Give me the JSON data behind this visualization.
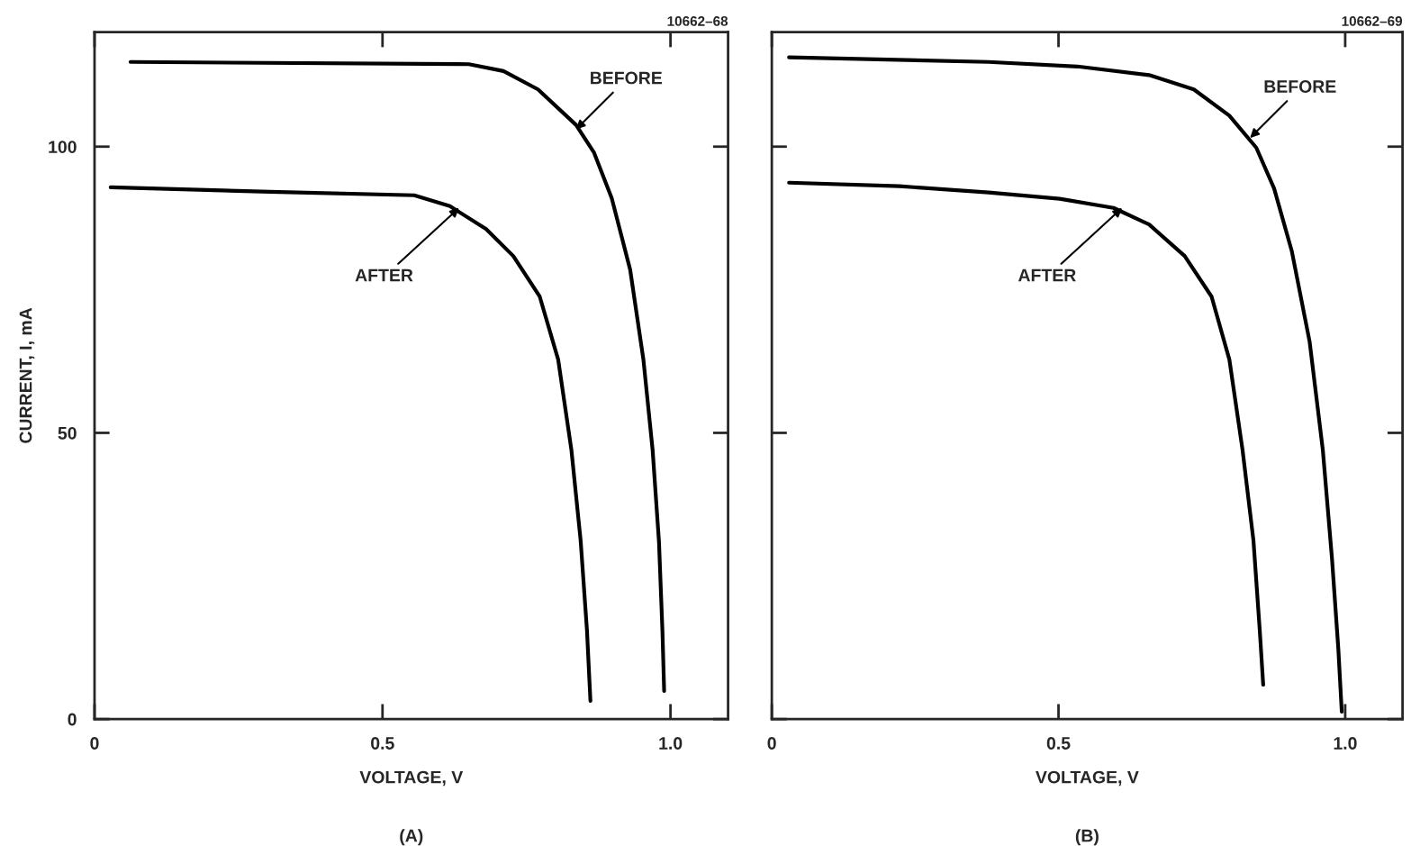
{
  "chart_data": [
    {
      "type": "line",
      "xlabel": "VOLTAGE, V",
      "ylabel": "CURRENT, I, mA",
      "xlim": [
        0,
        1.1
      ],
      "ylim": [
        0,
        120
      ],
      "xticks": [
        0,
        0.5,
        {
          "value": 1.0,
          "label": "1.0"
        }
      ],
      "yticks": [
        0,
        50,
        100
      ],
      "grid": false,
      "legend": false,
      "tick_labels": true,
      "series": [
        {
          "color": "#000000",
          "x": [
            0.0625,
            0.65,
            0.71,
            0.77,
            0.836,
            0.867,
            0.898,
            0.93,
            0.953,
            0.969,
            0.98,
            0.986,
            0.989
          ],
          "values": [
            114.8,
            114.4,
            113.2,
            110,
            103.8,
            99,
            91,
            78.5,
            62.8,
            47,
            31,
            15.5,
            4.9
          ]
        },
        {
          "color": "#000000",
          "x": [
            0.028,
            0.305,
            0.555,
            0.617,
            0.68,
            0.727,
            0.773,
            0.805,
            0.828,
            0.844,
            0.855,
            0.861
          ],
          "values": [
            92.9,
            92.1,
            91.5,
            89.6,
            85.6,
            80.9,
            73.8,
            62.8,
            47,
            31.2,
            15.5,
            3.2
          ]
        }
      ],
      "annotations": [
        {
          "text": "BEFORE",
          "x": 0.836,
          "y": 103
        },
        {
          "text": "AFTER",
          "x": 0.633,
          "y": 89.3
        },
        "10662–68",
        "(A)"
      ]
    },
    {
      "type": "line",
      "xlabel": "VOLTAGE, V",
      "xlim": [
        0,
        1.1
      ],
      "ylim": [
        0,
        120
      ],
      "xticks": [
        0,
        0.5,
        {
          "value": 1.0,
          "label": "1.0"
        }
      ],
      "yticks": [
        0,
        50,
        100
      ],
      "grid": false,
      "legend": false,
      "tick_labels": "x",
      "series": [
        {
          "color": "#000000",
          "x": [
            0.03,
            0.378,
            0.533,
            0.658,
            0.736,
            0.798,
            0.845,
            0.876,
            0.907,
            0.938,
            0.961,
            0.977,
            0.988,
            0.994
          ],
          "values": [
            115.6,
            114.8,
            114,
            112.5,
            110,
            105.4,
            99.8,
            92.7,
            81.7,
            65.9,
            47,
            28,
            12.3,
            1.3
          ]
        },
        {
          "color": "#000000",
          "x": [
            0.03,
            0.222,
            0.378,
            0.502,
            0.596,
            0.658,
            0.72,
            0.767,
            0.798,
            0.821,
            0.84,
            0.851,
            0.857
          ],
          "values": [
            93.7,
            93.1,
            92,
            90.9,
            89.3,
            86.4,
            80.9,
            73.8,
            62.8,
            47,
            31.2,
            15.5,
            6
          ]
        }
      ],
      "annotations": [
        {
          "text": "BEFORE",
          "x": 0.834,
          "y": 101.5
        },
        {
          "text": "AFTER",
          "x": 0.611,
          "y": 89.3
        },
        "10662–69",
        "(B)"
      ]
    }
  ]
}
